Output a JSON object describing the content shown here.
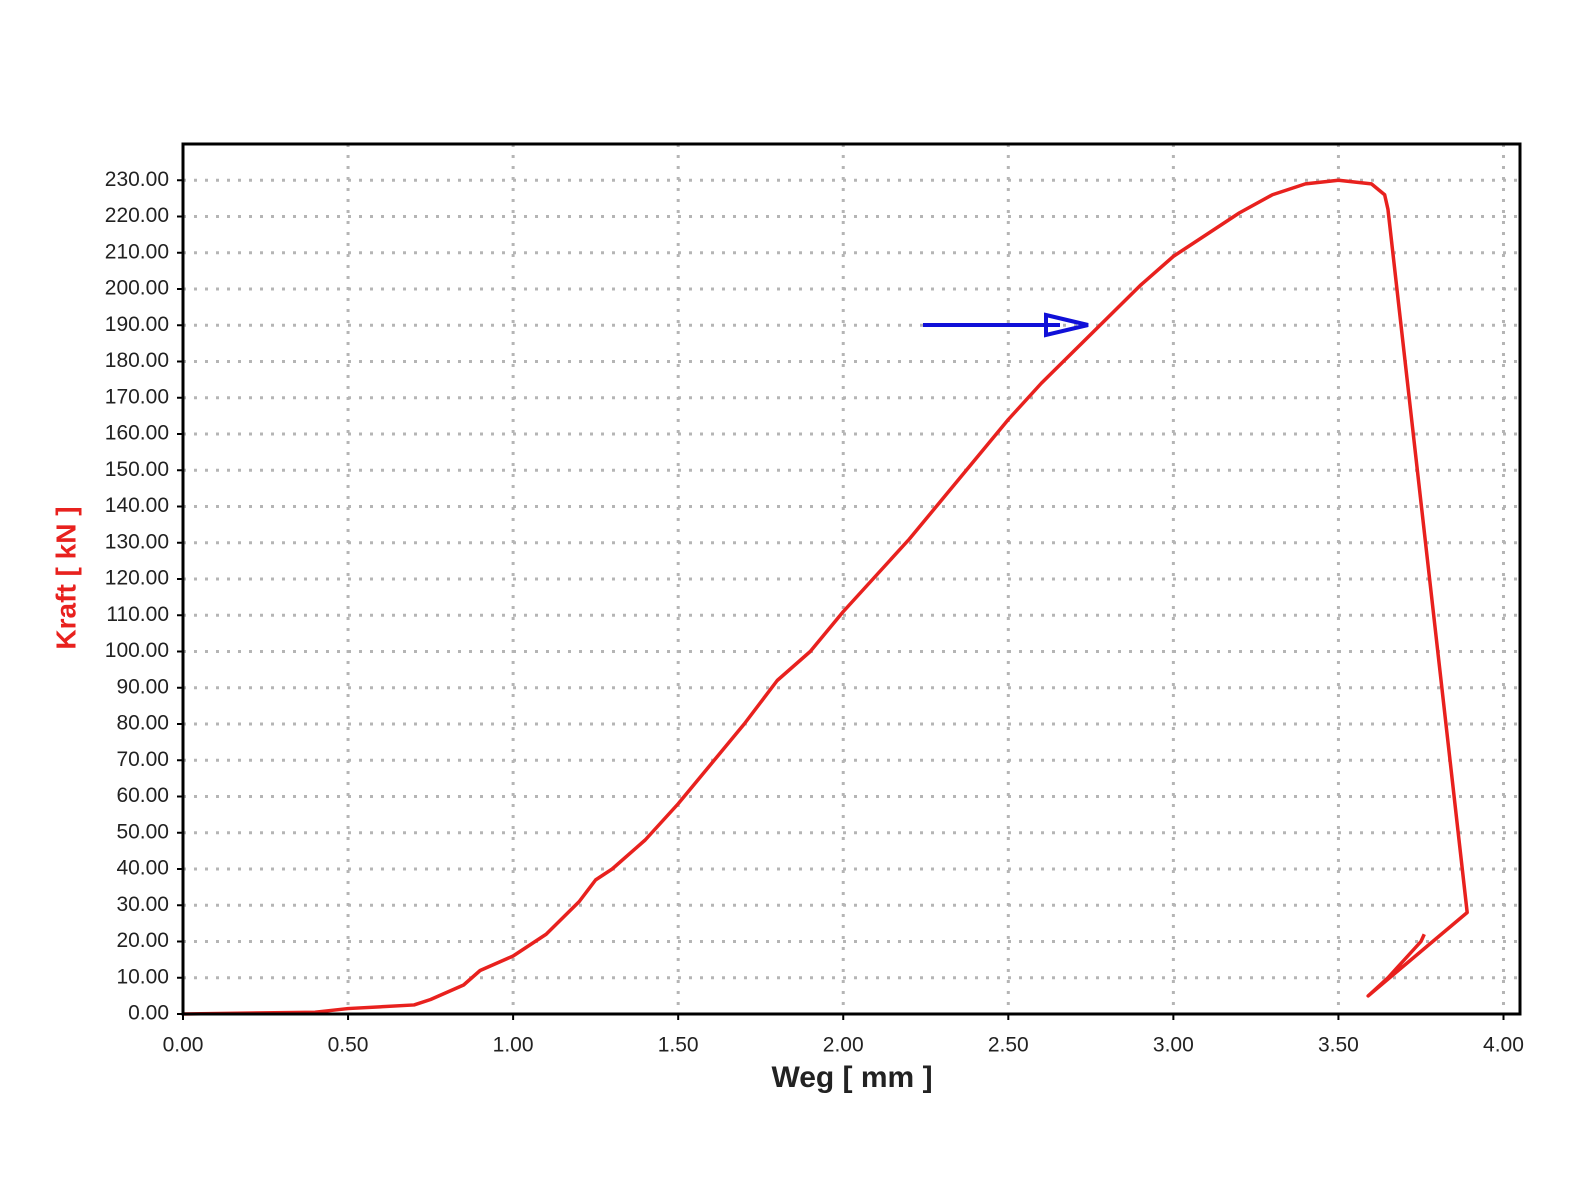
{
  "chart_data": {
    "type": "line",
    "x_label": "Weg [ mm ]",
    "y_label": "Kraft [ kN ]",
    "xlim": [
      0,
      4.05
    ],
    "ylim": [
      0,
      240
    ],
    "xticks": [
      {
        "value": 0,
        "label": "0.00"
      },
      {
        "value": 0.5,
        "label": "0.50"
      },
      {
        "value": 1,
        "label": "1.00"
      },
      {
        "value": 1.5,
        "label": "1.50"
      },
      {
        "value": 2,
        "label": "2.00"
      },
      {
        "value": 2.5,
        "label": "2.50"
      },
      {
        "value": 3,
        "label": "3.00"
      },
      {
        "value": 3.5,
        "label": "3.50"
      },
      {
        "value": 4,
        "label": "4.00"
      }
    ],
    "yticks": [
      {
        "value": 0,
        "label": "0.00"
      },
      {
        "value": 10,
        "label": "10.00"
      },
      {
        "value": 20,
        "label": "20.00"
      },
      {
        "value": 30,
        "label": "30.00"
      },
      {
        "value": 40,
        "label": "40.00"
      },
      {
        "value": 50,
        "label": "50.00"
      },
      {
        "value": 60,
        "label": "60.00"
      },
      {
        "value": 70,
        "label": "70.00"
      },
      {
        "value": 80,
        "label": "80.00"
      },
      {
        "value": 90,
        "label": "90.00"
      },
      {
        "value": 100,
        "label": "100.00"
      },
      {
        "value": 110,
        "label": "110.00"
      },
      {
        "value": 120,
        "label": "120.00"
      },
      {
        "value": 130,
        "label": "130.00"
      },
      {
        "value": 140,
        "label": "140.00"
      },
      {
        "value": 150,
        "label": "150.00"
      },
      {
        "value": 160,
        "label": "160.00"
      },
      {
        "value": 170,
        "label": "170.00"
      },
      {
        "value": 180,
        "label": "180.00"
      },
      {
        "value": 190,
        "label": "190.00"
      },
      {
        "value": 200,
        "label": "200.00"
      },
      {
        "value": 210,
        "label": "210.00"
      },
      {
        "value": 220,
        "label": "220.00"
      },
      {
        "value": 230,
        "label": "230.00"
      }
    ],
    "grid": true,
    "y_label_color": "#e8211e",
    "series": [
      {
        "color": "#e8211e",
        "x": [
          0,
          0.4,
          0.5,
          0.7,
          0.75,
          0.85,
          0.9,
          1.0,
          1.1,
          1.2,
          1.25,
          1.3,
          1.4,
          1.5,
          1.6,
          1.7,
          1.8,
          1.9,
          2.0,
          2.1,
          2.2,
          2.3,
          2.4,
          2.5,
          2.6,
          2.7,
          2.8,
          2.9,
          3.0,
          3.1,
          3.2,
          3.3,
          3.4,
          3.5,
          3.6,
          3.64,
          3.65,
          3.89,
          3.59,
          3.65,
          3.7,
          3.75,
          3.76
        ],
        "values": [
          0,
          0.5,
          1.5,
          2.5,
          4,
          8,
          12,
          16,
          22,
          31,
          37,
          40,
          48,
          58,
          69,
          80,
          92,
          100,
          111,
          121,
          131,
          142,
          153,
          164,
          174,
          183,
          192,
          201,
          209,
          215,
          221,
          226,
          229,
          230,
          229,
          226,
          222,
          28,
          5,
          10,
          15,
          20,
          22
        ]
      }
    ]
  }
}
